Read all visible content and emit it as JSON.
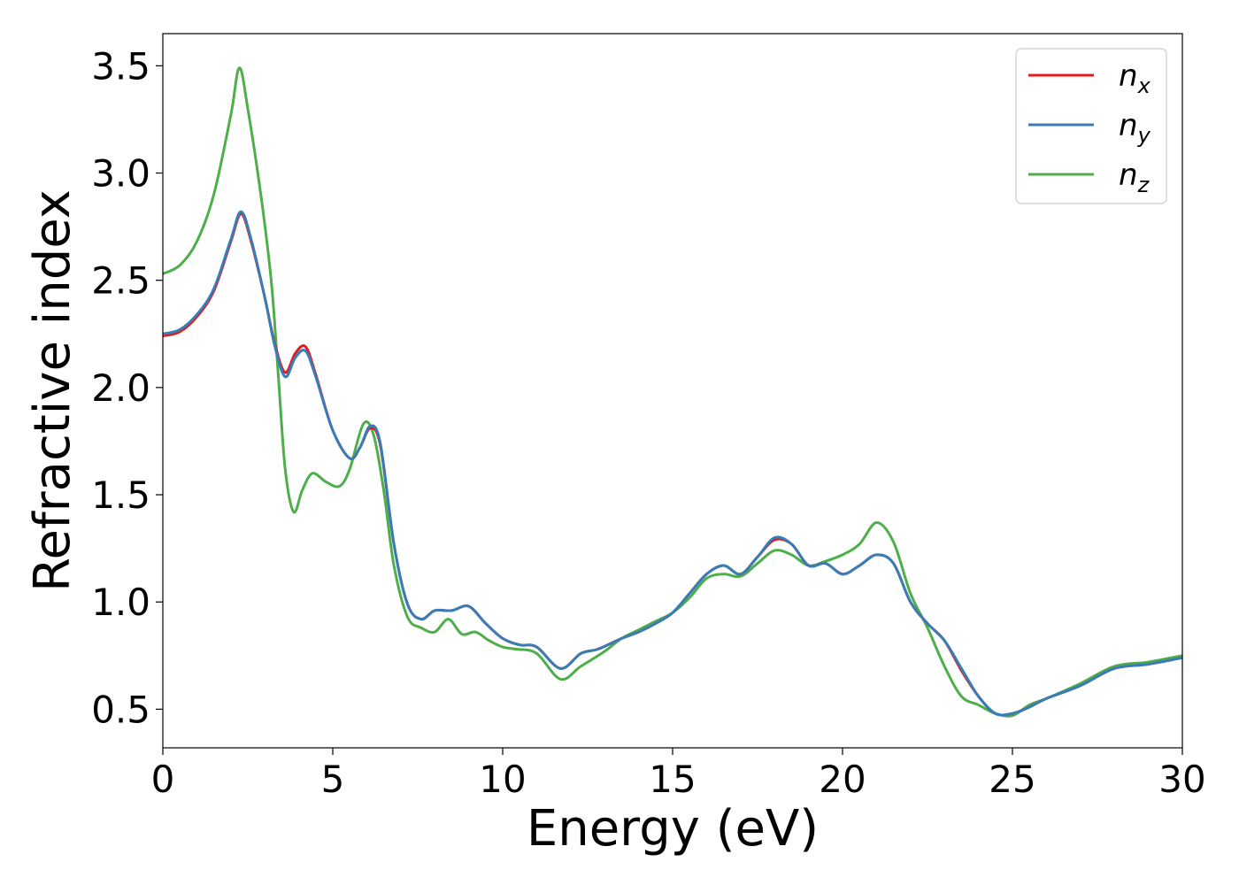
{
  "chart_data": {
    "type": "line",
    "xlabel": "Energy (eV)",
    "ylabel": "Refractive index",
    "xlim": [
      0,
      30
    ],
    "ylim": [
      0.32,
      3.65
    ],
    "xticks": [
      0,
      5,
      10,
      15,
      20,
      25,
      30
    ],
    "xtick_labels": [
      "0",
      "5",
      "10",
      "15",
      "20",
      "25",
      "30"
    ],
    "yticks": [
      0.5,
      1.0,
      1.5,
      2.0,
      2.5,
      3.0,
      3.5
    ],
    "ytick_labels": [
      "0.5",
      "1.0",
      "1.5",
      "2.0",
      "2.5",
      "3.0",
      "3.5"
    ],
    "grid": false,
    "legend_position": "top-right",
    "series": [
      {
        "name": "n_x",
        "legend_base": "n",
        "legend_sub": "x",
        "color": "#e41a1c",
        "x": [
          0,
          0.5,
          1.0,
          1.5,
          2.0,
          2.3,
          2.6,
          3.0,
          3.3,
          3.6,
          3.9,
          4.2,
          4.5,
          5.0,
          5.5,
          5.8,
          6.1,
          6.4,
          6.8,
          7.2,
          7.6,
          8.0,
          8.5,
          9.0,
          9.5,
          10.0,
          10.5,
          11.0,
          11.7,
          12.3,
          12.8,
          13.5,
          14.0,
          14.5,
          15.0,
          15.5,
          16.0,
          16.5,
          17.0,
          17.5,
          18.0,
          18.5,
          19.0,
          19.5,
          20.0,
          20.5,
          21.0,
          21.5,
          22.0,
          22.5,
          23.0,
          23.5,
          24.0,
          24.5,
          25.0,
          25.5,
          26.0,
          27.0,
          28.0,
          29.0,
          30.0
        ],
        "values": [
          2.24,
          2.26,
          2.33,
          2.45,
          2.68,
          2.81,
          2.68,
          2.42,
          2.2,
          2.07,
          2.16,
          2.19,
          2.06,
          1.8,
          1.67,
          1.72,
          1.81,
          1.73,
          1.27,
          0.99,
          0.92,
          0.96,
          0.96,
          0.98,
          0.9,
          0.83,
          0.8,
          0.79,
          0.69,
          0.76,
          0.78,
          0.83,
          0.86,
          0.9,
          0.95,
          1.04,
          1.13,
          1.17,
          1.13,
          1.21,
          1.29,
          1.27,
          1.17,
          1.18,
          1.13,
          1.17,
          1.22,
          1.18,
          1.0,
          0.9,
          0.82,
          0.68,
          0.56,
          0.48,
          0.48,
          0.51,
          0.55,
          0.61,
          0.69,
          0.71,
          0.74
        ]
      },
      {
        "name": "n_y",
        "legend_base": "n",
        "legend_sub": "y",
        "color": "#377eb8",
        "x": [
          0,
          0.5,
          1.0,
          1.5,
          2.0,
          2.3,
          2.6,
          3.0,
          3.3,
          3.6,
          3.9,
          4.2,
          4.5,
          5.0,
          5.5,
          5.8,
          6.1,
          6.4,
          6.8,
          7.2,
          7.6,
          8.0,
          8.5,
          9.0,
          9.5,
          10.0,
          10.5,
          11.0,
          11.7,
          12.3,
          12.8,
          13.5,
          14.0,
          14.5,
          15.0,
          15.5,
          16.0,
          16.5,
          17.0,
          17.5,
          18.0,
          18.5,
          19.0,
          19.5,
          20.0,
          20.5,
          21.0,
          21.5,
          22.0,
          22.5,
          23.0,
          23.5,
          24.0,
          24.5,
          25.0,
          25.5,
          26.0,
          27.0,
          28.0,
          29.0,
          30.0
        ],
        "values": [
          2.25,
          2.27,
          2.34,
          2.46,
          2.69,
          2.82,
          2.69,
          2.42,
          2.19,
          2.05,
          2.14,
          2.17,
          2.05,
          1.8,
          1.67,
          1.72,
          1.82,
          1.74,
          1.27,
          0.99,
          0.92,
          0.96,
          0.96,
          0.98,
          0.9,
          0.83,
          0.8,
          0.79,
          0.69,
          0.76,
          0.78,
          0.83,
          0.86,
          0.9,
          0.95,
          1.04,
          1.13,
          1.17,
          1.13,
          1.21,
          1.3,
          1.27,
          1.17,
          1.18,
          1.13,
          1.17,
          1.22,
          1.18,
          1.0,
          0.9,
          0.82,
          0.69,
          0.56,
          0.48,
          0.48,
          0.51,
          0.55,
          0.61,
          0.69,
          0.71,
          0.74
        ]
      },
      {
        "name": "n_z",
        "legend_base": "n",
        "legend_sub": "z",
        "color": "#4daf4a",
        "x": [
          0,
          0.5,
          1.0,
          1.5,
          2.0,
          2.25,
          2.5,
          2.9,
          3.2,
          3.4,
          3.6,
          3.85,
          4.1,
          4.4,
          4.8,
          5.2,
          5.5,
          5.9,
          6.2,
          6.5,
          6.8,
          7.2,
          7.6,
          8.0,
          8.4,
          8.8,
          9.2,
          9.6,
          10.0,
          10.4,
          11.0,
          11.7,
          12.3,
          13.0,
          13.5,
          14.0,
          14.5,
          15.0,
          15.5,
          16.0,
          16.5,
          17.0,
          17.5,
          18.0,
          18.5,
          19.0,
          19.5,
          20.0,
          20.5,
          21.0,
          21.5,
          22.0,
          22.5,
          23.0,
          23.5,
          24.0,
          24.5,
          25.0,
          25.5,
          26.0,
          27.0,
          28.0,
          29.0,
          30.0
        ],
        "values": [
          2.53,
          2.57,
          2.68,
          2.9,
          3.27,
          3.49,
          3.3,
          2.88,
          2.48,
          2.05,
          1.62,
          1.42,
          1.52,
          1.6,
          1.56,
          1.54,
          1.62,
          1.83,
          1.78,
          1.52,
          1.17,
          0.93,
          0.88,
          0.86,
          0.92,
          0.85,
          0.86,
          0.82,
          0.79,
          0.78,
          0.76,
          0.64,
          0.7,
          0.77,
          0.83,
          0.87,
          0.91,
          0.95,
          1.02,
          1.11,
          1.13,
          1.12,
          1.18,
          1.24,
          1.22,
          1.17,
          1.19,
          1.22,
          1.27,
          1.37,
          1.28,
          1.04,
          0.88,
          0.7,
          0.56,
          0.52,
          0.48,
          0.47,
          0.52,
          0.55,
          0.62,
          0.7,
          0.72,
          0.75
        ]
      }
    ]
  }
}
